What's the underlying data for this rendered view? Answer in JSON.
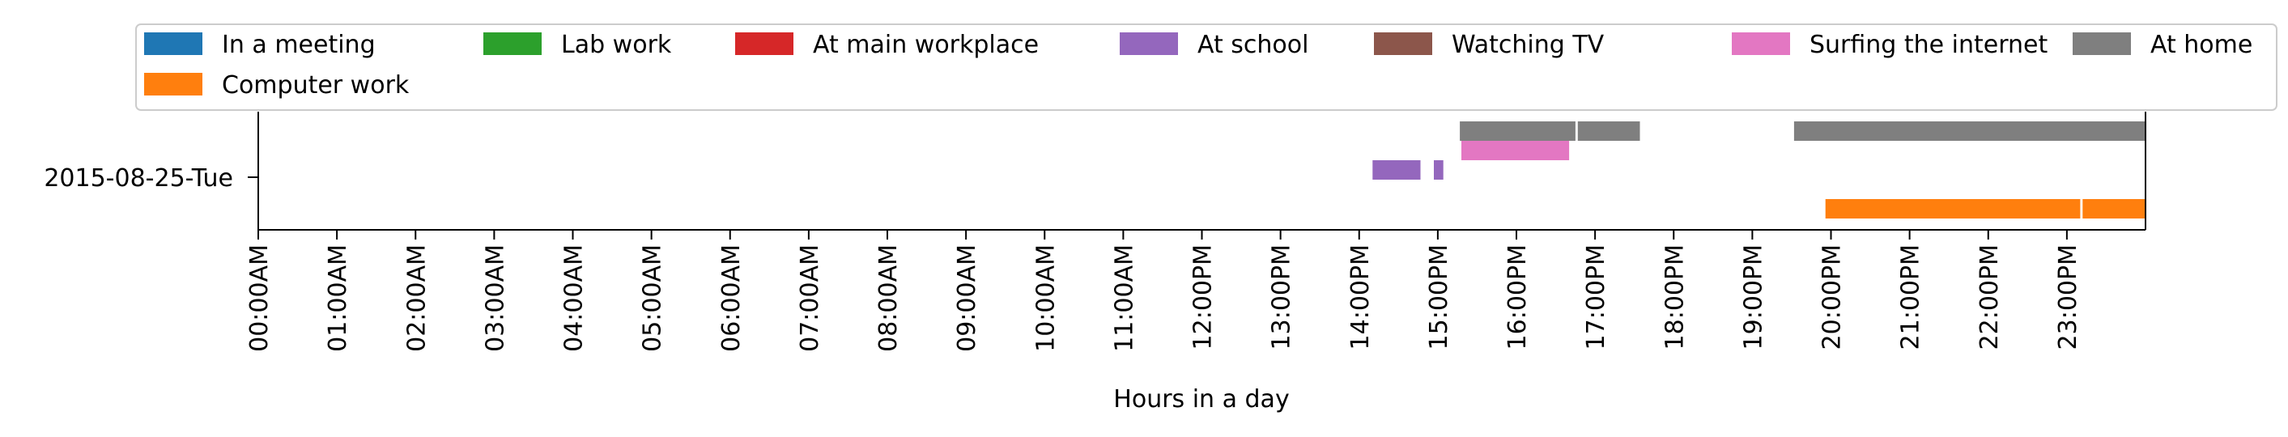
{
  "chart_data": {
    "type": "bar",
    "orientation": "horizontal-timeline",
    "xlabel": "Hours in a day",
    "xlim": [
      0,
      24
    ],
    "x_tick_labels": [
      "00:00AM",
      "01:00AM",
      "02:00AM",
      "03:00AM",
      "04:00AM",
      "05:00AM",
      "06:00AM",
      "07:00AM",
      "08:00AM",
      "09:00AM",
      "10:00AM",
      "11:00AM",
      "12:00PM",
      "13:00PM",
      "14:00PM",
      "15:00PM",
      "16:00PM",
      "17:00PM",
      "18:00PM",
      "19:00PM",
      "20:00PM",
      "21:00PM",
      "22:00PM",
      "23:00PM"
    ],
    "categories": [
      "2015-08-25-Tue"
    ],
    "legend": {
      "placement": "top",
      "columns": 7,
      "entries": [
        {
          "label": "In a meeting",
          "color": "#1f77b4"
        },
        {
          "label": "Lab work",
          "color": "#2ca02c"
        },
        {
          "label": "At main workplace",
          "color": "#d62728"
        },
        {
          "label": "At school",
          "color": "#9467bd"
        },
        {
          "label": "Watching TV",
          "color": "#8c564b"
        },
        {
          "label": "Surfing the internet",
          "color": "#e377c2"
        },
        {
          "label": "At home",
          "color": "#7f7f7f"
        },
        {
          "label": "Computer work",
          "color": "#ff7f0e"
        }
      ]
    },
    "series": [
      {
        "name": "At home",
        "color": "#7f7f7f",
        "lane": 0,
        "intervals": [
          [
            15.28,
            16.75
          ],
          [
            16.78,
            17.57
          ],
          [
            19.53,
            24.0
          ]
        ]
      },
      {
        "name": "Surfing the internet",
        "color": "#e377c2",
        "lane": 1,
        "intervals": [
          [
            15.3,
            16.67
          ]
        ]
      },
      {
        "name": "At school",
        "color": "#9467bd",
        "lane": 2,
        "intervals": [
          [
            14.17,
            14.78
          ],
          [
            14.95,
            15.07
          ]
        ]
      },
      {
        "name": "Computer work",
        "color": "#ff7f0e",
        "lane": 4,
        "intervals": [
          [
            19.93,
            23.17
          ],
          [
            23.2,
            24.0
          ]
        ]
      }
    ]
  }
}
